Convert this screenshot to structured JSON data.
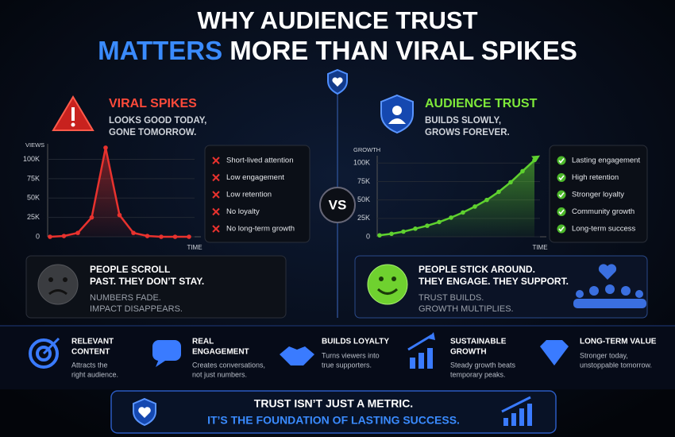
{
  "title": {
    "line1": "WHY AUDIENCE TRUST",
    "highlight": "MATTERS",
    "rest": " MORE THAN VIRAL SPIKES"
  },
  "vs": "VS",
  "left": {
    "heading": "VIRAL SPIKES",
    "subtitle": [
      "LOOKS GOOD TODAY,",
      "GONE TOMORROW."
    ],
    "chart": {
      "type": "line",
      "y_label": "VIEWS",
      "x_label": "TIME",
      "color": "#e8322e",
      "values": [
        0,
        1000,
        5000,
        25000,
        115000,
        28000,
        5000,
        1000,
        0,
        0,
        0
      ],
      "ylim": [
        0,
        120000
      ],
      "yticks": [
        {
          "value": 0,
          "label": "0"
        },
        {
          "value": 25000,
          "label": "25K"
        },
        {
          "value": 50000,
          "label": "50K"
        },
        {
          "value": 75000,
          "label": "75K"
        },
        {
          "value": 100000,
          "label": "100K"
        }
      ]
    },
    "points": [
      "Short-lived attention",
      "Low engagement",
      "Low retention",
      "No loyalty",
      "No long-term growth"
    ],
    "callout": {
      "title": [
        "PEOPLE SCROLL",
        "PAST. THEY DON’T STAY."
      ],
      "text": [
        "NUMBERS FADE.",
        "IMPACT DISAPPEARS."
      ]
    }
  },
  "right": {
    "heading": "AUDIENCE TRUST",
    "subtitle": [
      "BUILDS SLOWLY,",
      "GROWS FOREVER."
    ],
    "chart": {
      "type": "line",
      "y_label": "GROWTH",
      "x_label": "TIME",
      "color": "#5fd12f",
      "values": [
        2000,
        4000,
        7000,
        11000,
        15000,
        20000,
        26000,
        33000,
        41000,
        50000,
        61000,
        74000,
        89000,
        104000
      ],
      "ylim": [
        0,
        110000
      ],
      "yticks": [
        {
          "value": 0,
          "label": "0"
        },
        {
          "value": 25000,
          "label": "25K"
        },
        {
          "value": 50000,
          "label": "50K"
        },
        {
          "value": 75000,
          "label": "75K"
        },
        {
          "value": 100000,
          "label": "100K"
        }
      ]
    },
    "points": [
      "Lasting engagement",
      "High retention",
      "Stronger loyalty",
      "Community growth",
      "Long-term success"
    ],
    "callout": {
      "title": [
        "PEOPLE STICK AROUND.",
        "THEY ENGAGE. THEY SUPPORT."
      ],
      "text": [
        "TRUST BUILDS.",
        "GROWTH MULTIPLIES."
      ]
    }
  },
  "features": [
    {
      "title": [
        "RELEVANT",
        "CONTENT"
      ],
      "text": [
        "Attracts the",
        "right audience."
      ]
    },
    {
      "title": [
        "REAL",
        "ENGAGEMENT"
      ],
      "text": [
        "Creates conversations,",
        "not just numbers."
      ]
    },
    {
      "title": [
        "BUILDS LOYALTY"
      ],
      "text": [
        "Turns viewers into",
        "true supporters."
      ]
    },
    {
      "title": [
        "SUSTAINABLE",
        "GROWTH"
      ],
      "text": [
        "Steady growth beats",
        "temporary peaks."
      ]
    },
    {
      "title": [
        "LONG-TERM VALUE"
      ],
      "text": [
        "Stronger today,",
        "unstoppable tomorrow."
      ]
    }
  ],
  "footer": {
    "line1": "TRUST ISN’T JUST A METRIC.",
    "line2": "IT’S THE FOUNDATION OF LASTING SUCCESS."
  }
}
